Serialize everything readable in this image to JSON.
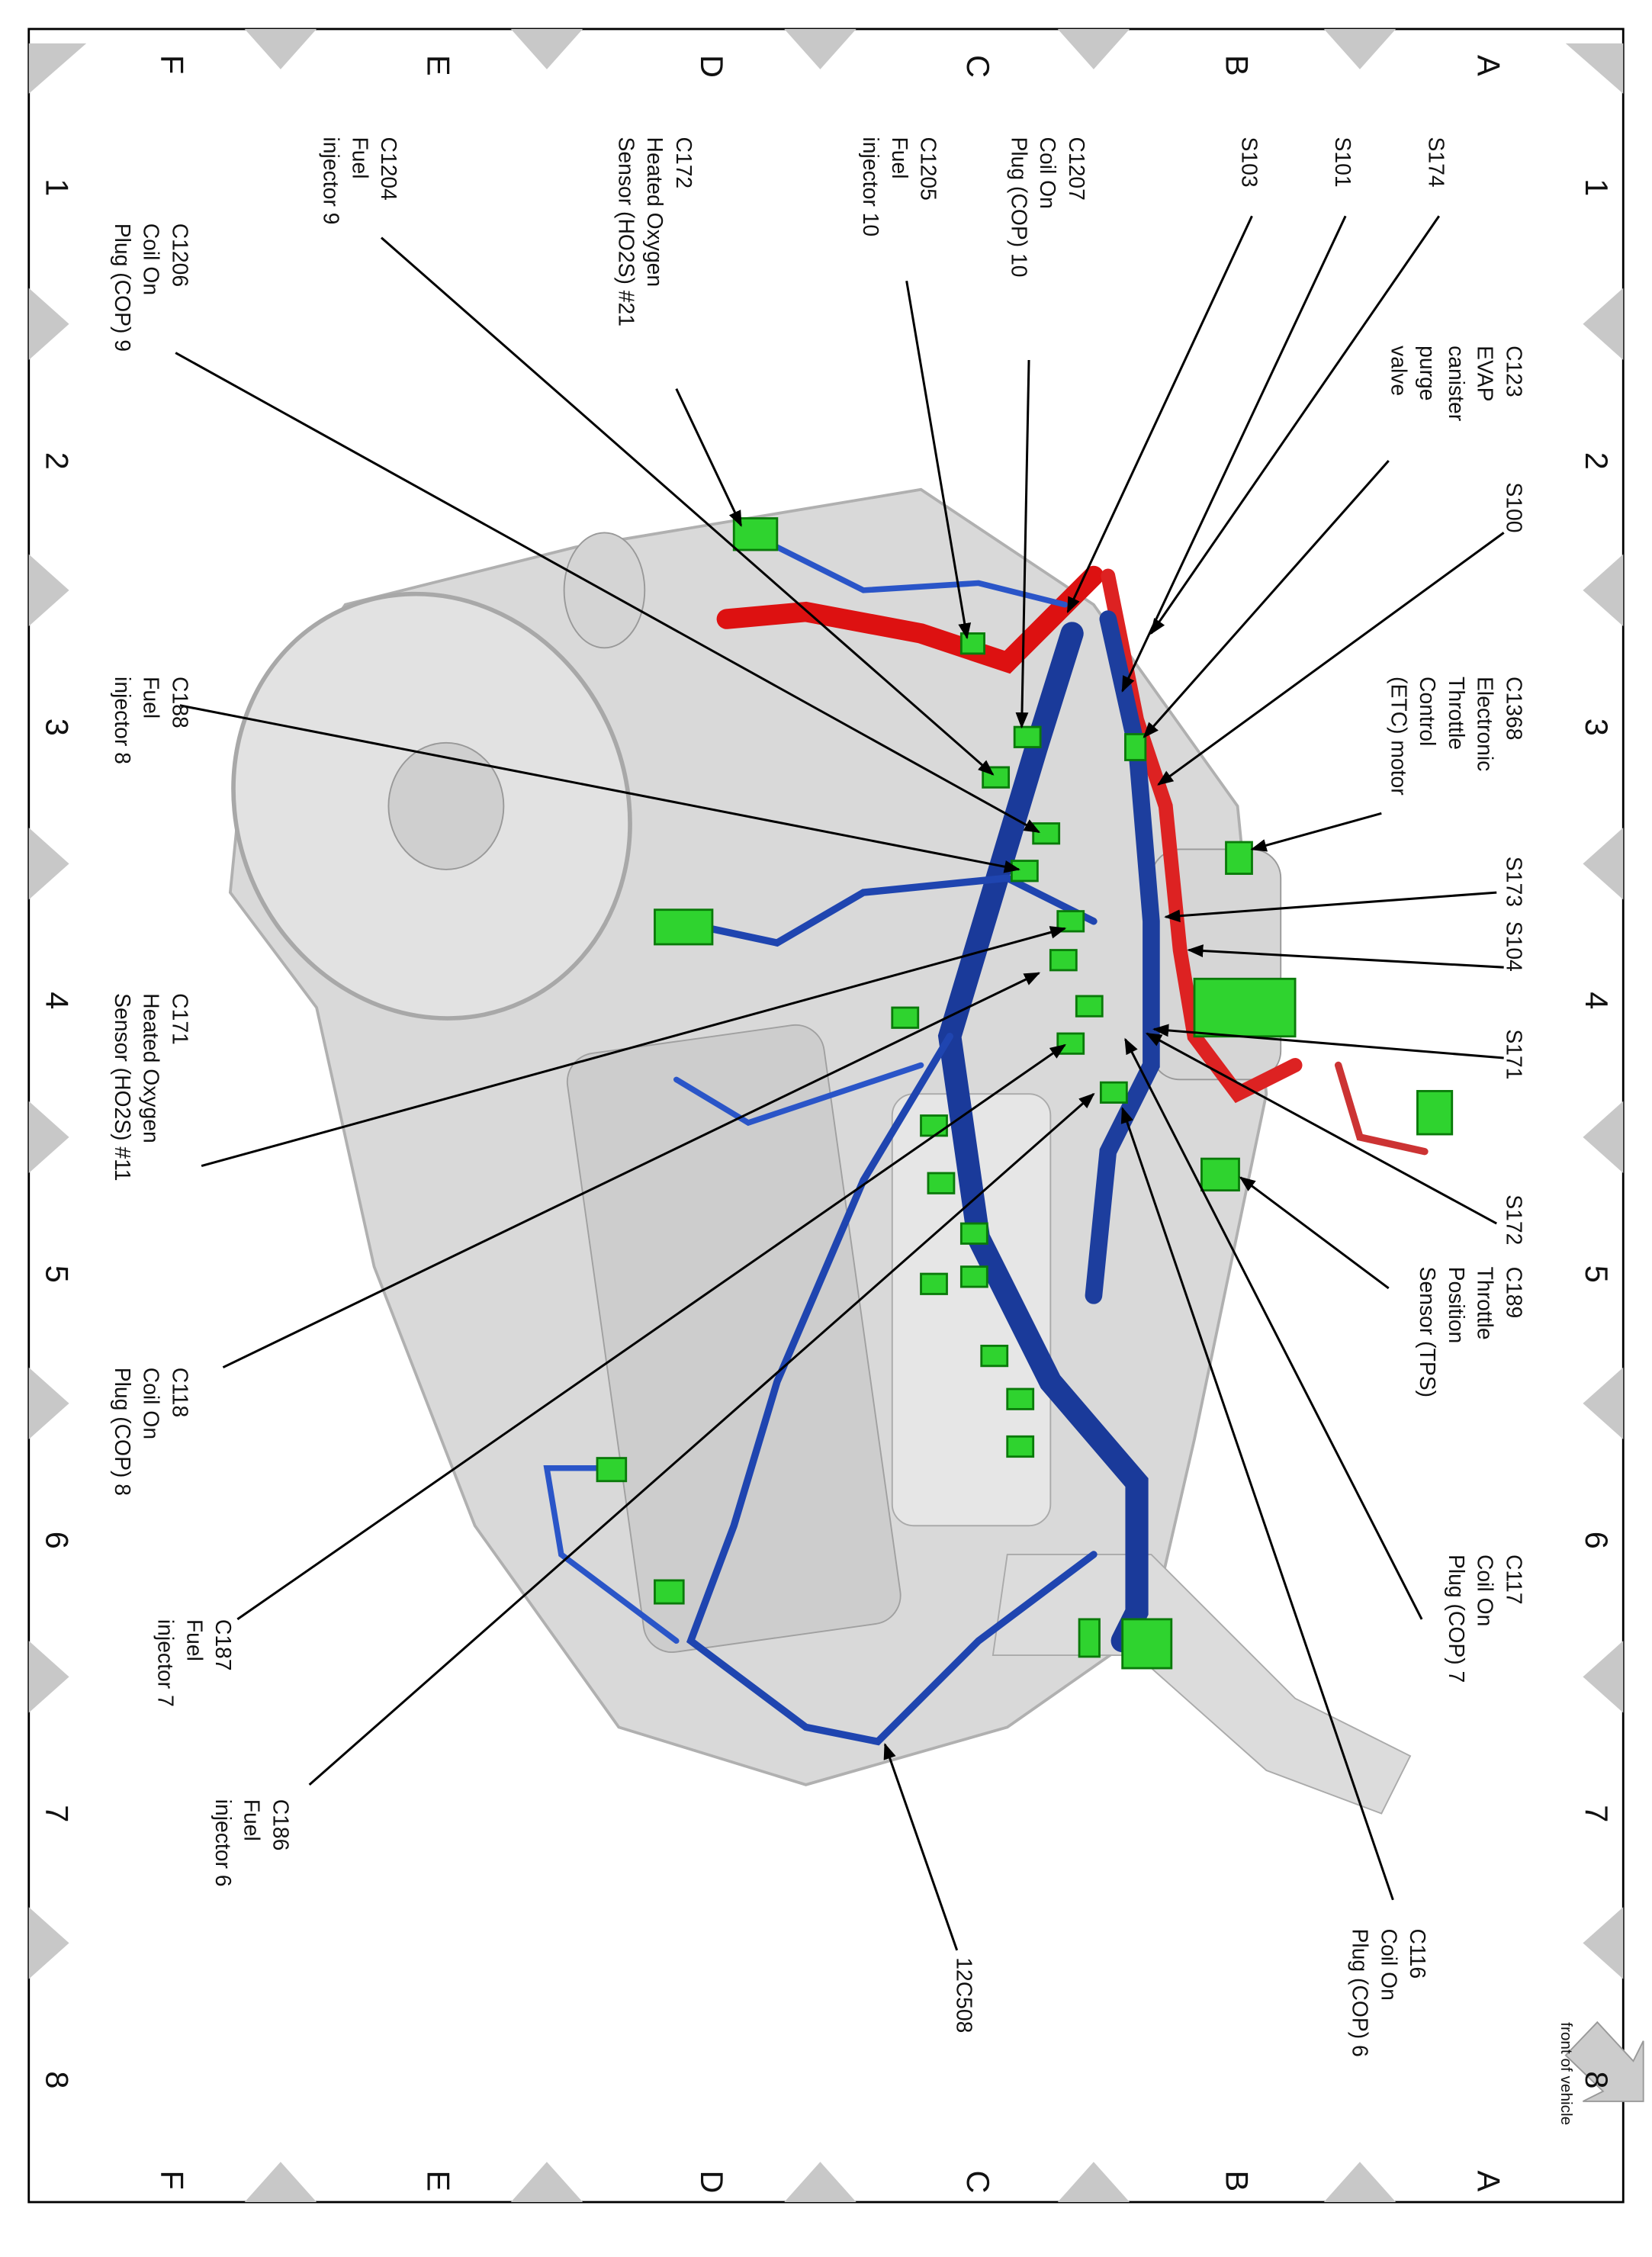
{
  "grid": {
    "letters_top": [
      "A",
      "B",
      "C",
      "D",
      "E",
      "F"
    ],
    "letters_bottom": [
      "A",
      "B",
      "C",
      "D",
      "E",
      "F"
    ],
    "numbers_right": [
      "1",
      "2",
      "3",
      "4",
      "5",
      "6",
      "7",
      "8"
    ],
    "numbers_left": [
      "1",
      "2",
      "3",
      "4",
      "5",
      "6",
      "7",
      "8"
    ]
  },
  "labels": [
    {
      "lines": [
        "S174"
      ]
    },
    {
      "lines": [
        "S101"
      ]
    },
    {
      "lines": [
        "S103"
      ]
    },
    {
      "lines": [
        "C1207",
        "Coil On",
        "Plug (COP) 10"
      ]
    },
    {
      "lines": [
        "C1205",
        "Fuel",
        "injector 10"
      ]
    },
    {
      "lines": [
        "C172",
        "Heated Oxygen",
        "Sensor (HO2S) #21"
      ]
    },
    {
      "lines": [
        "C1204",
        "Fuel",
        "injector 9"
      ]
    },
    {
      "lines": [
        "C1206",
        "Coil On",
        "Plug (COP) 9"
      ]
    },
    {
      "lines": [
        "C123",
        "EVAP",
        "canister",
        "purge",
        "valve"
      ]
    },
    {
      "lines": [
        "S100"
      ]
    },
    {
      "lines": [
        "C1368",
        "Electronic",
        "Throttle",
        "Control",
        "(ETC) motor"
      ]
    },
    {
      "lines": [
        "C188",
        "Fuel",
        "injector 8"
      ]
    },
    {
      "lines": [
        "S173"
      ]
    },
    {
      "lines": [
        "S104"
      ]
    },
    {
      "lines": [
        "S171"
      ]
    },
    {
      "lines": [
        "S172"
      ]
    },
    {
      "lines": [
        "C189",
        "Throttle",
        "Position",
        "Sensor (TPS)"
      ]
    },
    {
      "lines": [
        "C171",
        "Heated Oxygen",
        "Sensor (HO2S) #11"
      ]
    },
    {
      "lines": [
        "C118",
        "Coil On",
        "Plug (COP) 8"
      ]
    },
    {
      "lines": [
        "C117",
        "Coil On",
        "Plug (COP) 7"
      ]
    },
    {
      "lines": [
        "C187",
        "Fuel",
        "injector 7"
      ]
    },
    {
      "lines": [
        "C186",
        "Fuel",
        "injector 6"
      ]
    },
    {
      "lines": [
        "C116",
        "Coil On",
        "Plug (COP) 6"
      ]
    },
    {
      "lines": [
        "12C508"
      ]
    }
  ],
  "orientation_note": "front of vehicle"
}
